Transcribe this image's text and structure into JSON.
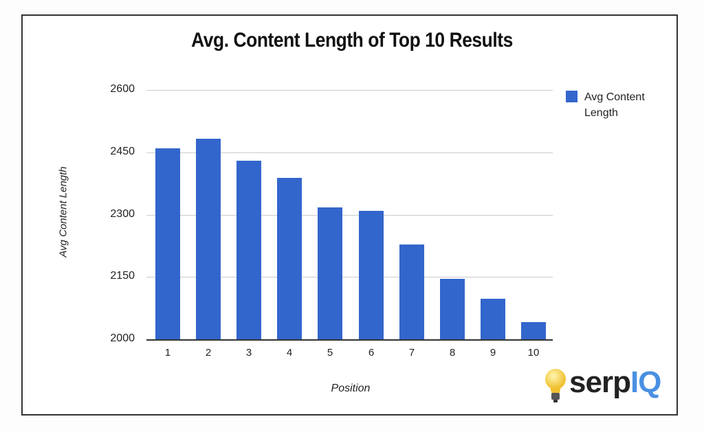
{
  "chart_data": {
    "type": "bar",
    "title": "Avg. Content Length of Top 10 Results",
    "xlabel": "Position",
    "ylabel": "Avg Content Length",
    "categories": [
      "1",
      "2",
      "3",
      "4",
      "5",
      "6",
      "7",
      "8",
      "9",
      "10"
    ],
    "series": [
      {
        "name": "Avg Content Length",
        "color": "#3366cc",
        "values": [
          2459,
          2483,
          2430,
          2388,
          2318,
          2309,
          2228,
          2146,
          2098,
          2041
        ]
      }
    ],
    "ylim": [
      2000,
      2600
    ],
    "yticks": [
      "2000",
      "2150",
      "2300",
      "2450",
      "2600"
    ],
    "grid": true,
    "legend_position": "right"
  },
  "logo": {
    "part1": "serp",
    "part2": "IQ"
  }
}
